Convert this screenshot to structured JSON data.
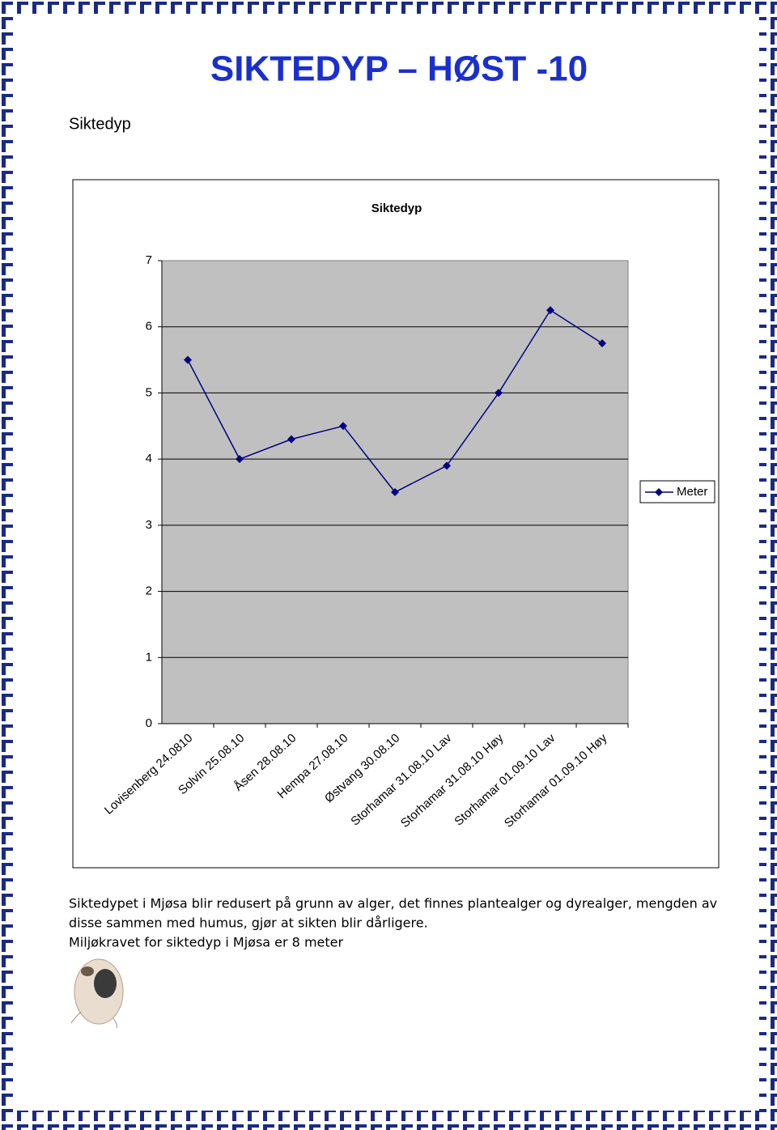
{
  "header": {
    "title": "SIKTEDYP – HØST -10",
    "subtitle": "Siktedyp"
  },
  "chart_data": {
    "type": "line",
    "title": "Siktedyp",
    "categories": [
      "Lovisenberg 24.0810",
      "Solvin 25.08.10",
      "Åsen 28.08.10",
      "Hempa 27.08.10",
      "Østvang 30.08.10",
      "Storhamar 31.08.10 Lav",
      "Storhamar 31.08.10 Høy",
      "Storhamar 01.09.10 Lav",
      "Storhamar 01.09.10 Høy"
    ],
    "series": [
      {
        "name": "Meter",
        "color": "#000080",
        "values": [
          5.5,
          4.0,
          4.3,
          4.5,
          3.5,
          3.9,
          5.0,
          6.25,
          5.75
        ]
      }
    ],
    "ylim": [
      0,
      7
    ],
    "yticks": [
      0,
      1,
      2,
      3,
      4,
      5,
      6,
      7
    ],
    "grid": true,
    "legend": "right"
  },
  "body": {
    "lines": [
      "Siktedypet i Mjøsa blir redusert på grunn av alger, det finnes plantealger og dyrealger, mengden av",
      "disse sammen med humus, gjør at sikten blir dårligere.",
      "Miljøkravet for siktedyp i Mjøsa er 8 meter"
    ]
  }
}
